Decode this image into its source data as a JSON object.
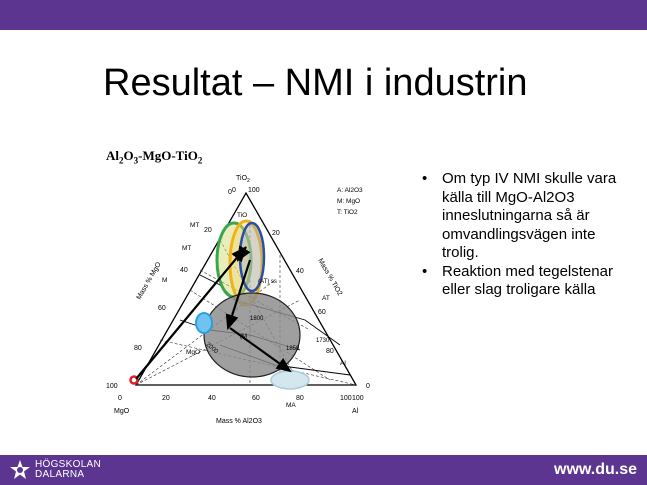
{
  "slide": {
    "title": "Resultat – NMI i industrin",
    "diagram_title": {
      "prefix": "Al",
      "sub1": "2",
      "mid": "O",
      "sub2": "3",
      "suffix": "-MgO-TiO",
      "sub3": "2"
    },
    "bullets": [
      "Om typ IV NMI skulle vara källa till MgO-Al2O3 inneslutningarna så är omvandlingsvägen inte trolig.",
      "Reaktion med tegelstenar eller slag troligare källa"
    ]
  },
  "diagram": {
    "apex_top": "TiO",
    "apex_top_sub": "2",
    "apex_left": "MgO",
    "apex_right": "Al",
    "apex_right_mid": "O",
    "legend": [
      "A: Al2O3",
      "M: MgO",
      "T: TiO2"
    ],
    "axis_bottom": "Mass % Al2O3",
    "axis_left": "Mass % MgO",
    "axis_right": "Mass % TiO2",
    "bottom_ticks": [
      "0",
      "20",
      "40",
      "60",
      "80",
      "100"
    ],
    "left_ticks": [
      "100",
      "80",
      "60",
      "40",
      "20",
      "0"
    ],
    "right_ticks": [
      "100",
      "80",
      "60",
      "40",
      "20",
      "0"
    ],
    "labels": {
      "tio": "TiO",
      "mt2": "MT",
      "mt": "MT",
      "m2t": "M",
      "at": "AT",
      "at_ss": "(AT) ss",
      "m2t_ma": "(M",
      "mgo_label": "MgO",
      "ma": "MA",
      "al2o3_side": "Al",
      "t1730": "1730",
      "t1800": "1800",
      "t2000": "2000",
      "t1850": "1850",
      "t1900": "1900"
    },
    "colors": {
      "green": "#3aa64a",
      "yellow": "#f1b418",
      "blue": "#2b4fa8",
      "gray_fill": "#8a8a8a",
      "cyan": "#2aa0e0",
      "light_blue": "#a9ccd8",
      "red": "#e21f26"
    }
  },
  "footer": {
    "logo_line1": "HÖGSKOLAN",
    "logo_line2": "DALARNA",
    "url": "www.du.se"
  }
}
